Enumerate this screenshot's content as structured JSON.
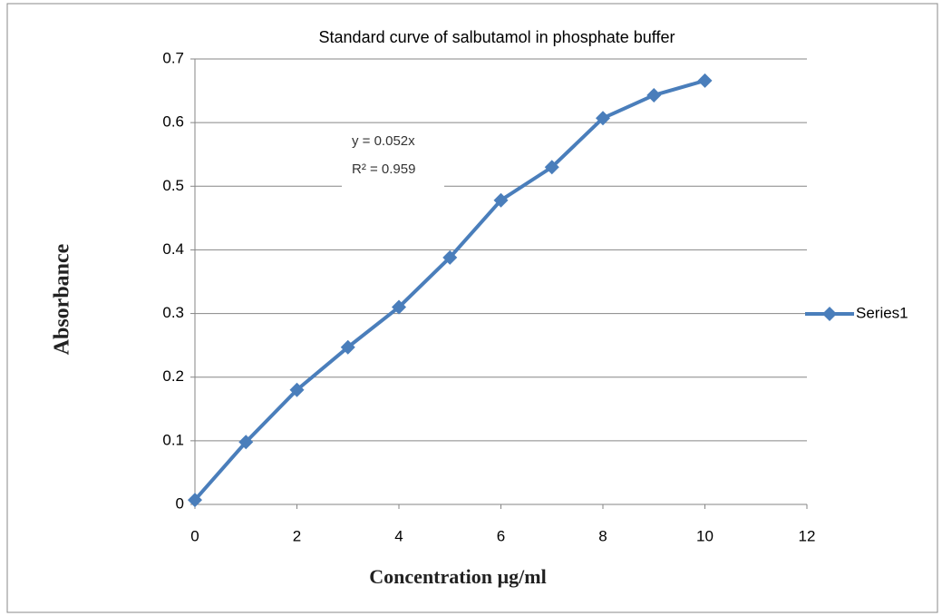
{
  "chart_data": {
    "type": "line",
    "title": "Standard curve of salbutamol in phosphate buffer",
    "x_label": "Concentration µg/ml",
    "y_label": "Absorbance",
    "x": [
      0,
      1,
      2,
      3,
      4,
      5,
      6,
      7,
      8,
      9,
      10
    ],
    "series": [
      {
        "name": "Series1",
        "color": "#4a7ebb",
        "values": [
          0.007,
          0.098,
          0.18,
          0.247,
          0.31,
          0.388,
          0.478,
          0.53,
          0.607,
          0.643,
          0.666
        ]
      }
    ],
    "xlim": [
      0,
      12
    ],
    "xticks": [
      0,
      2,
      4,
      6,
      8,
      10,
      12
    ],
    "ylim": [
      0,
      0.7
    ],
    "yticks": [
      0,
      0.1,
      0.2,
      0.3,
      0.4,
      0.5,
      0.6,
      0.7
    ],
    "grid": true,
    "legend": "right",
    "annotations": [
      "y = 0.052x",
      "R² = 0.959"
    ]
  }
}
